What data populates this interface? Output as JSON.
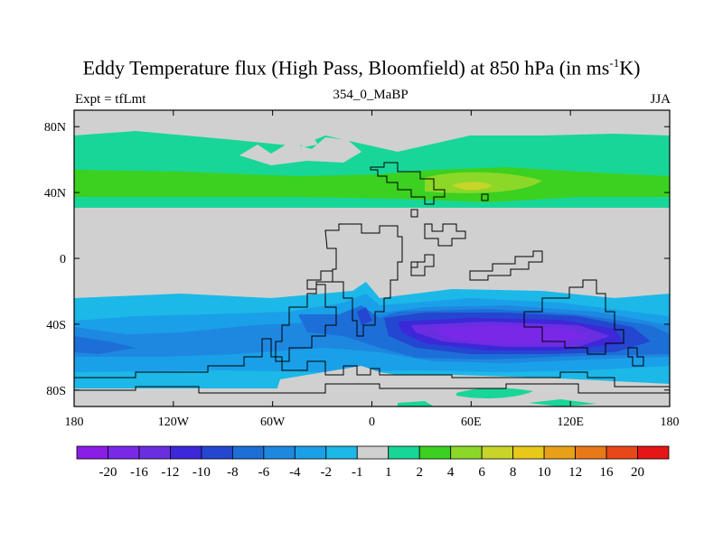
{
  "title_main": "Eddy Temperature flux (High Pass, Bloomfield) at 850 hPa (in ms",
  "title_sup": "-1",
  "title_end": "K)",
  "left_label": "Expt = tfLmt",
  "center_label": "354_0_MaBP",
  "right_label": "JJA",
  "chart_data": {
    "type": "heatmap",
    "title": "Eddy Temperature flux (High Pass, Bloomfield) at 850 hPa (in ms-1K)",
    "xlim": [
      -180,
      180
    ],
    "ylim": [
      -90,
      90
    ],
    "x_ticks": [
      {
        "value": -180,
        "label": "180"
      },
      {
        "value": -120,
        "label": "120W"
      },
      {
        "value": -60,
        "label": "60W"
      },
      {
        "value": 0,
        "label": "0"
      },
      {
        "value": 60,
        "label": "60E"
      },
      {
        "value": 120,
        "label": "120E"
      },
      {
        "value": 180,
        "label": "180"
      }
    ],
    "y_ticks": [
      {
        "value": 80,
        "label": "80N"
      },
      {
        "value": 40,
        "label": "40N"
      },
      {
        "value": 0,
        "label": "0"
      },
      {
        "value": -40,
        "label": "40S"
      },
      {
        "value": -80,
        "label": "80S"
      }
    ],
    "colorbar": {
      "labels": [
        "-20",
        "-16",
        "-12",
        "-10",
        "-8",
        "-6",
        "-4",
        "-2",
        "-1",
        "1",
        "2",
        "4",
        "6",
        "8",
        "10",
        "12",
        "16",
        "20"
      ],
      "colors": [
        "#8a1ee6",
        "#7a28e8",
        "#6a2ee0",
        "#3c28d8",
        "#2446d0",
        "#1d6fd8",
        "#1e88e0",
        "#1aa0e8",
        "#1cb8e8",
        "#d0d0d0",
        "#18d698",
        "#3cd020",
        "#8cd828",
        "#c8d42a",
        "#e8c818",
        "#e8a018",
        "#e87818",
        "#e84818",
        "#e41616"
      ]
    },
    "regions": [
      {
        "name": "nh-high-latitude-band",
        "level": "1 to 2",
        "lon_range": [
          -180,
          180
        ],
        "lat_range": [
          30,
          75
        ]
      },
      {
        "name": "nh-midlatitude-core",
        "level": "2 to 4",
        "lon_range": [
          -180,
          180
        ],
        "lat_range": [
          36,
          50
        ]
      },
      {
        "name": "nh-peak-east",
        "level": "4 to 6",
        "lon_range": [
          30,
          100
        ],
        "lat_range": [
          40,
          48
        ]
      },
      {
        "name": "sh-storm-track",
        "level": "-1 to -8",
        "lon_range": [
          -180,
          180
        ],
        "lat_range": [
          -85,
          -25
        ]
      },
      {
        "name": "sh-core",
        "level": "-10 to -20",
        "lon_range": [
          10,
          150
        ],
        "lat_range": [
          -60,
          -35
        ]
      },
      {
        "name": "antarctic-edge",
        "level": "1 to 2",
        "lon_range": [
          -180,
          180
        ],
        "lat_range": [
          -88,
          -80
        ]
      }
    ]
  }
}
